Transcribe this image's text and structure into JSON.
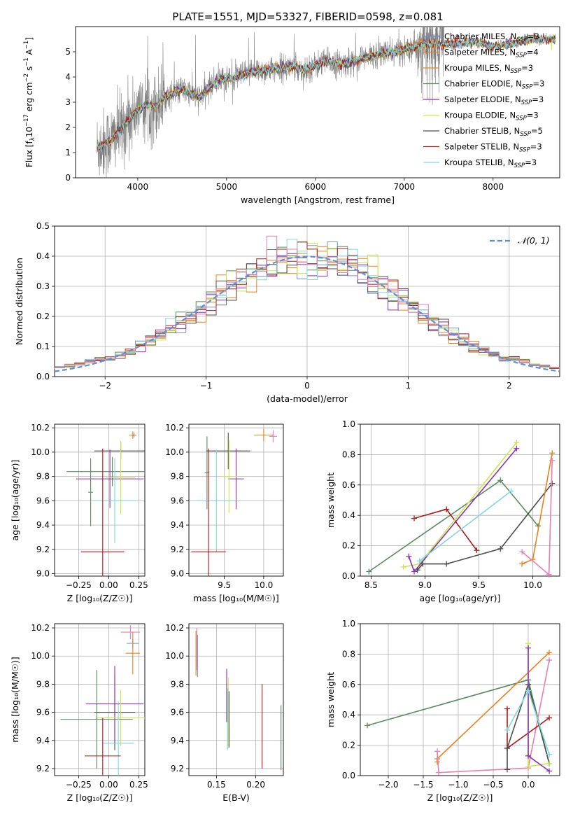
{
  "figure_title": "PLATE=1551, MJD=53327, FIBERID=0598, z=0.081",
  "colors": {
    "Chabrier MILES": "#6f8fd6",
    "Salpeter MILES": "#e8821f",
    "Kroupa MILES": "#e8821f",
    "Chabrier ELODIE": "#5a8a5e",
    "Salpeter ELODIE": "#8e2fb4",
    "Kroupa ELODIE": "#c8e84a",
    "Chabrier STELIB": "#4d4d4d",
    "Salpeter STELIB": "#b01818",
    "Kroupa STELIB": "#7fd8dc",
    "extra": "#e67fb3",
    "observed": "#808080",
    "normal": "#5b8ed6"
  },
  "chart_data": [
    {
      "id": "spectrum",
      "type": "line",
      "xlabel": "wavelength [Angstrom, rest frame]",
      "ylabel_main": "Flux [f",
      "ylabel_sub": "λ",
      "ylabel_rest": "10",
      "ylabel_exp1": "−17",
      "ylabel_mid": " erg cm",
      "ylabel_exp2": "−2",
      "ylabel_mid2": " s",
      "ylabel_exp3": "−1",
      "ylabel_end": " A",
      "ylabel_exp4": "−1",
      "ylabel_close": "]",
      "xlim": [
        3300,
        8750
      ],
      "ylim": [
        0,
        6
      ],
      "xticks": [
        4000,
        5000,
        6000,
        7000,
        8000
      ],
      "yticks": [
        0,
        1,
        2,
        3,
        4,
        5
      ],
      "grid": false,
      "legend": "top-right",
      "observed_range": [
        3540,
        7450
      ],
      "model_anchor_points": [
        [
          3550,
          1.2
        ],
        [
          3700,
          1.5
        ],
        [
          3800,
          1.9
        ],
        [
          3900,
          2.3
        ],
        [
          4000,
          2.7
        ],
        [
          4100,
          2.9
        ],
        [
          4200,
          2.8
        ],
        [
          4300,
          3.2
        ],
        [
          4500,
          3.5
        ],
        [
          4700,
          3.2
        ],
        [
          4900,
          3.9
        ],
        [
          5100,
          4.0
        ],
        [
          5300,
          4.2
        ],
        [
          5500,
          4.3
        ],
        [
          5700,
          4.4
        ],
        [
          5900,
          4.3
        ],
        [
          6100,
          4.6
        ],
        [
          6300,
          4.5
        ],
        [
          6500,
          4.7
        ],
        [
          6700,
          4.9
        ],
        [
          6900,
          5.0
        ],
        [
          7100,
          5.2
        ],
        [
          7300,
          5.3
        ],
        [
          7500,
          5.3
        ],
        [
          7800,
          5.4
        ],
        [
          8000,
          5.2
        ],
        [
          8200,
          5.3
        ],
        [
          8400,
          5.5
        ]
      ],
      "legend_entries": [
        {
          "name": "Chabrier MILES",
          "label_pre": "Chabrier MILES, N",
          "label_sub": "SSP",
          "label_post": "=3"
        },
        {
          "name": "Salpeter MILES",
          "label_pre": "Salpeter MILES, N",
          "label_sub": "SSP",
          "label_post": "=4"
        },
        {
          "name": "Kroupa MILES",
          "label_pre": "Kroupa MILES, N",
          "label_sub": "SSP",
          "label_post": "=3"
        },
        {
          "name": "Chabrier ELODIE",
          "label_pre": "Chabrier ELODIE, N",
          "label_sub": "SSP",
          "label_post": "=3"
        },
        {
          "name": "Salpeter ELODIE",
          "label_pre": "Salpeter ELODIE, N",
          "label_sub": "SSP",
          "label_post": "=3"
        },
        {
          "name": "Kroupa ELODIE",
          "label_pre": "Kroupa ELODIE, N",
          "label_sub": "SSP",
          "label_post": "=3"
        },
        {
          "name": "Chabrier STELIB",
          "label_pre": "Chabrier STELIB, N",
          "label_sub": "SSP",
          "label_post": "=5"
        },
        {
          "name": "Salpeter STELIB",
          "label_pre": "Salpeter STELIB, N",
          "label_sub": "SSP",
          "label_post": "=3"
        },
        {
          "name": "Kroupa STELIB",
          "label_pre": "Kroupa STELIB, N",
          "label_sub": "SSP",
          "label_post": "=3"
        }
      ]
    },
    {
      "id": "residuals",
      "type": "step",
      "xlabel": "(data-model)/error",
      "ylabel": "Normed distribution",
      "xlim": [
        -2.5,
        2.5
      ],
      "ylim": [
        0,
        0.5
      ],
      "xticks": [
        -2,
        -1,
        0,
        1,
        2
      ],
      "yticks": [
        0.0,
        0.1,
        0.2,
        0.3,
        0.4,
        0.5
      ],
      "xtick_labels": [
        "−2",
        "−1",
        "0",
        "1",
        "2"
      ],
      "ytick_labels": [
        "0.0",
        "0.1",
        "0.2",
        "0.3",
        "0.4",
        "0.5"
      ],
      "grid": true,
      "legend": "top-right",
      "normal_label": "𝒩(0, 1)",
      "bin_width": 0.1
    },
    {
      "id": "age_vs_Z",
      "type": "errorbar",
      "xlabel": "Z [log₁₀(Z/Z☉)]",
      "ylabel": "age  [log₁₀(age/yr)]",
      "xlim": [
        -0.45,
        0.3
      ],
      "ylim": [
        8.98,
        10.23
      ],
      "xticks": [
        -0.25,
        0.0,
        0.25
      ],
      "xtick_labels": [
        "−0.25",
        "0.00",
        "0.25"
      ],
      "yticks": [
        9.0,
        9.2,
        9.4,
        9.6,
        9.8,
        10.0,
        10.2
      ],
      "ytick_labels": [
        "9.0",
        "9.2",
        "9.4",
        "9.6",
        "9.8",
        "10.0",
        "10.2"
      ],
      "grid": true,
      "points": [
        {
          "series": "Chabrier MILES",
          "x": 0.21,
          "xerr": 0.02,
          "y": 10.14,
          "yerr": 0.02
        },
        {
          "series": "Salpeter MILES",
          "x": 0.2,
          "xerr": 0.03,
          "y": 10.14,
          "yerr": 0.03
        },
        {
          "series": "Chabrier STELIB",
          "x": 0.1,
          "xerr": 0.22,
          "y": 10.01,
          "yerr": 0.07
        },
        {
          "series": "Chabrier ELODIE",
          "x": 0.03,
          "xerr": 0.38,
          "y": 9.84,
          "yerr": 0.12
        },
        {
          "series": "Salpeter ELODIE",
          "x": 0.01,
          "xerr": 0.28,
          "y": 9.78,
          "yerr": 0.24
        },
        {
          "series": "Kroupa ELODIE",
          "x": 0.1,
          "xerr": 0.12,
          "y": 9.79,
          "yerr": 0.3
        },
        {
          "series": "Kroupa STELIB",
          "x": 0.05,
          "xerr": 0.18,
          "y": 9.6,
          "yerr": 0.35
        },
        {
          "series": "Salpeter STELIB",
          "x": -0.05,
          "xerr": 0.18,
          "y": 9.18,
          "yerr": 0.85
        },
        {
          "series": "Chabrier ELODIE",
          "x": -0.15,
          "xerr": 0.02,
          "y": 9.67,
          "yerr": 0.28
        }
      ]
    },
    {
      "id": "age_vs_mass",
      "type": "errorbar",
      "xlabel": "mass [log₁₀(M/M☉)]",
      "ylabel": "",
      "xlim": [
        9.05,
        10.25
      ],
      "ylim": [
        8.98,
        10.23
      ],
      "xticks": [
        9.5,
        10.0
      ],
      "xtick_labels": [
        "9.5",
        "10.0"
      ],
      "yticks": [
        9.0,
        9.2,
        9.4,
        9.6,
        9.8,
        10.0,
        10.2
      ],
      "ytick_labels": [
        "9.0",
        "9.2",
        "9.4",
        "9.6",
        "9.8",
        "10.0",
        "10.2"
      ],
      "grid": true,
      "points": [
        {
          "series": "extra",
          "x": 10.12,
          "xerr": 0.05,
          "y": 10.13,
          "yerr": 0.05
        },
        {
          "series": "Salpeter MILES",
          "x": 10.0,
          "xerr": 0.12,
          "y": 10.14,
          "yerr": 0.05
        },
        {
          "series": "Chabrier STELIB",
          "x": 9.55,
          "xerr": 0.28,
          "y": 10.01,
          "yerr": 0.15
        },
        {
          "series": "Chabrier ELODIE",
          "x": 9.28,
          "xerr": 0.03,
          "y": 9.83,
          "yerr": 0.3
        },
        {
          "series": "Salpeter ELODIE",
          "x": 9.65,
          "xerr": 0.1,
          "y": 9.78,
          "yerr": 0.25
        },
        {
          "series": "Kroupa ELODIE",
          "x": 9.56,
          "xerr": 0.1,
          "y": 9.8,
          "yerr": 0.3
        },
        {
          "series": "Kroupa STELIB",
          "x": 9.4,
          "xerr": 0.25,
          "y": 9.6,
          "yerr": 0.42
        },
        {
          "series": "Salpeter STELIB",
          "x": 9.3,
          "xerr": 0.22,
          "y": 9.18,
          "yerr": 0.85
        }
      ]
    },
    {
      "id": "weight_vs_age",
      "type": "line",
      "xlabel": "age  [log₁₀(age/yr)]",
      "ylabel": "mass weight",
      "xlim": [
        8.4,
        10.25
      ],
      "ylim": [
        0.0,
        1.0
      ],
      "xticks": [
        8.5,
        9.0,
        9.5,
        10.0
      ],
      "xtick_labels": [
        "8.5",
        "9.0",
        "9.5",
        "10.0"
      ],
      "yticks": [
        0.0,
        0.2,
        0.4,
        0.6,
        0.8,
        1.0
      ],
      "ytick_labels": [
        "0.0",
        "0.2",
        "0.4",
        "0.6",
        "0.8",
        "1.0"
      ],
      "grid": true,
      "series": [
        {
          "name": "Chabrier ELODIE",
          "x": [
            8.48,
            9.7,
            10.05
          ],
          "y": [
            0.03,
            0.63,
            0.33
          ]
        },
        {
          "name": "Salpeter STELIB",
          "x": [
            8.9,
            9.2,
            9.48
          ],
          "y": [
            0.38,
            0.44,
            0.17
          ]
        },
        {
          "name": "Kroupa ELODIE",
          "x": [
            8.8,
            8.95,
            9.85
          ],
          "y": [
            0.06,
            0.08,
            0.88
          ]
        },
        {
          "name": "Salpeter ELODIE",
          "x": [
            8.85,
            8.9,
            9.85
          ],
          "y": [
            0.13,
            0.03,
            0.84
          ]
        },
        {
          "name": "Kroupa STELIB",
          "x": [
            8.95,
            9.8
          ],
          "y": [
            0.1,
            0.56
          ]
        },
        {
          "name": "Chabrier STELIB",
          "x": [
            8.93,
            8.98,
            9.2,
            9.7,
            10.18
          ],
          "y": [
            0.04,
            0.08,
            0.08,
            0.18,
            0.61
          ]
        },
        {
          "name": "Salpeter MILES",
          "x": [
            9.9,
            10.0,
            10.18
          ],
          "y": [
            0.08,
            0.11,
            0.81
          ]
        },
        {
          "name": "extra",
          "x": [
            9.9,
            10.15,
            10.18
          ],
          "y": [
            0.16,
            0.01,
            0.76
          ]
        }
      ]
    },
    {
      "id": "mass_vs_Z",
      "type": "errorbar",
      "xlabel": "Z [log₁₀(Z/Z☉)]",
      "ylabel": "mass [log₁₀(M/M☉)]",
      "xlim": [
        -0.45,
        0.3
      ],
      "ylim": [
        9.15,
        10.23
      ],
      "xticks": [
        -0.25,
        0.0,
        0.25
      ],
      "xtick_labels": [
        "−0.25",
        "0.00",
        "0.25"
      ],
      "yticks": [
        9.2,
        9.4,
        9.6,
        9.8,
        10.0,
        10.2
      ],
      "ytick_labels": [
        "9.2",
        "9.4",
        "9.6",
        "9.8",
        "10.0",
        "10.2"
      ],
      "grid": true,
      "points": [
        {
          "series": "extra",
          "x": 0.18,
          "xerr": 0.08,
          "y": 10.17,
          "yerr": 0.05
        },
        {
          "series": "Chabrier MILES",
          "x": 0.2,
          "xerr": 0.05,
          "y": 10.09,
          "yerr": 0.03
        },
        {
          "series": "Salpeter MILES",
          "x": 0.2,
          "xerr": 0.06,
          "y": 10.02,
          "yerr": 0.15
        },
        {
          "series": "Chabrier STELIB",
          "x": 0.05,
          "xerr": 0.17,
          "y": 9.6,
          "yerr": 0.27
        },
        {
          "series": "Salpeter ELODIE",
          "x": 0.05,
          "xerr": 0.24,
          "y": 9.66,
          "yerr": 0.27
        },
        {
          "series": "Kroupa ELODIE",
          "x": 0.1,
          "xerr": 0.2,
          "y": 9.56,
          "yerr": 0.2
        },
        {
          "series": "Chabrier ELODIE",
          "x": -0.1,
          "xerr": 0.3,
          "y": 9.55,
          "yerr": 0.35
        },
        {
          "series": "Kroupa STELIB",
          "x": 0.08,
          "xerr": 0.13,
          "y": 9.38,
          "yerr": 0.3
        },
        {
          "series": "Salpeter STELIB",
          "x": -0.05,
          "xerr": 0.15,
          "y": 9.29,
          "yerr": 0.27
        }
      ]
    },
    {
      "id": "mass_vs_EBV",
      "type": "errorbar",
      "xlabel": "E(B-V)",
      "ylabel": "",
      "xlim": [
        0.115,
        0.235
      ],
      "ylim": [
        9.15,
        10.23
      ],
      "xticks": [
        0.15,
        0.2
      ],
      "xtick_labels": [
        "0.15",
        "0.20"
      ],
      "yticks": [
        9.2,
        9.4,
        9.6,
        9.8,
        10.0,
        10.2
      ],
      "ytick_labels": [
        "9.2",
        "9.4",
        "9.6",
        "9.8",
        "10.0",
        "10.2"
      ],
      "grid": true,
      "points": [
        {
          "series": "extra",
          "x": 0.125,
          "y": 10.05,
          "yerr": 0.15
        },
        {
          "series": "Chabrier MILES",
          "x": 0.126,
          "y": 10.0,
          "yerr": 0.15
        },
        {
          "series": "Salpeter MILES",
          "x": 0.124,
          "y": 10.02,
          "yerr": 0.16
        },
        {
          "series": "Salpeter ELODIE",
          "x": 0.163,
          "y": 9.72,
          "yerr": 0.19
        },
        {
          "series": "Kroupa ELODIE",
          "x": 0.165,
          "y": 9.6,
          "yerr": 0.25
        },
        {
          "series": "Kroupa STELIB",
          "x": 0.164,
          "y": 9.55,
          "yerr": 0.22
        },
        {
          "series": "Chabrier STELIB",
          "x": 0.166,
          "y": 9.55,
          "yerr": 0.2
        },
        {
          "series": "Salpeter STELIB",
          "x": 0.208,
          "y": 9.5,
          "yerr": 0.3
        },
        {
          "series": "Chabrier ELODIE",
          "x": 0.232,
          "y": 9.42,
          "yerr": 0.23
        }
      ]
    },
    {
      "id": "weight_vs_Z",
      "type": "line",
      "xlabel": "Z [log₁₀(Z/Z☉)]",
      "ylabel": "mass weight",
      "xlim": [
        -2.4,
        0.45
      ],
      "ylim": [
        0.0,
        1.0
      ],
      "xticks": [
        -2.0,
        -1.5,
        -1.0,
        -0.5,
        0.0
      ],
      "xtick_labels": [
        "−2.0",
        "−1.5",
        "−1.0",
        "−0.5",
        "0.0"
      ],
      "yticks": [
        0.0,
        0.2,
        0.4,
        0.6,
        0.8,
        1.0
      ],
      "ytick_labels": [
        "0.0",
        "0.2",
        "0.4",
        "0.6",
        "0.8",
        "1.0"
      ],
      "grid": true,
      "series": [
        {
          "name": "Chabrier ELODIE",
          "x": [
            -2.3,
            0.0,
            0.3
          ],
          "y": [
            0.33,
            0.63,
            0.08
          ]
        },
        {
          "name": "Salpeter MILES",
          "x": [
            -1.3,
            -1.3,
            0.3
          ],
          "y": [
            0.09,
            0.11,
            0.81
          ]
        },
        {
          "name": "extra",
          "x": [
            -1.3,
            -1.28,
            0.0,
            0.3
          ],
          "y": [
            0.16,
            0.02,
            0.05,
            0.76
          ]
        },
        {
          "name": "Salpeter STELIB",
          "x": [
            -0.3,
            -0.3,
            0.3
          ],
          "y": [
            0.44,
            0.18,
            0.38
          ]
        },
        {
          "name": "Chabrier STELIB",
          "x": [
            -0.3,
            -0.3,
            0.0,
            0.3
          ],
          "y": [
            0.04,
            0.18,
            0.6,
            0.08
          ]
        },
        {
          "name": "Kroupa ELODIE",
          "x": [
            0.0,
            0.0,
            0.3
          ],
          "y": [
            0.87,
            0.06,
            0.08
          ]
        },
        {
          "name": "Salpeter ELODIE",
          "x": [
            0.0,
            0.0,
            0.3
          ],
          "y": [
            0.84,
            0.13,
            0.03
          ]
        },
        {
          "name": "Kroupa STELIB",
          "x": [
            -0.3,
            0.0,
            0.3
          ],
          "y": [
            0.3,
            0.56,
            0.14
          ]
        }
      ]
    }
  ]
}
